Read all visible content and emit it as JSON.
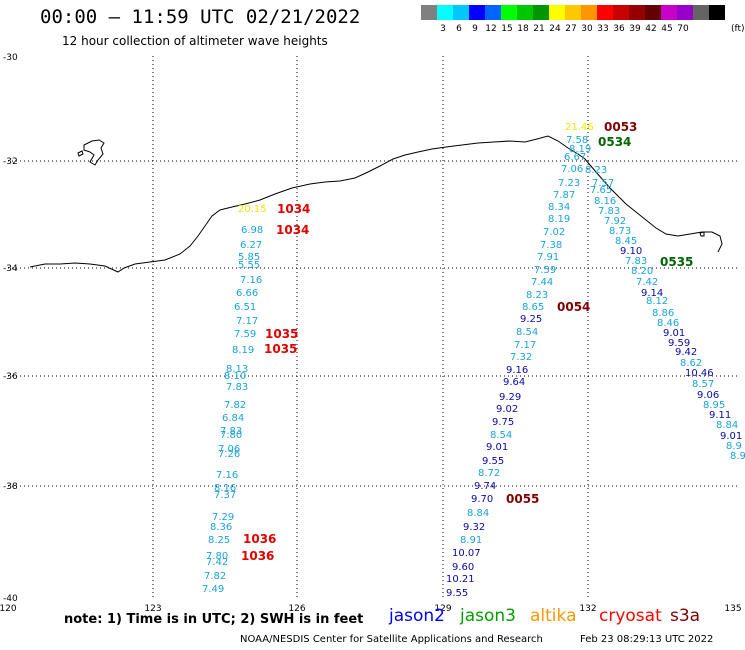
{
  "header": {
    "title": "00:00 – 11:59 UTC 02/21/2022",
    "subtitle": "12 hour collection of altimeter wave heights"
  },
  "colorbar": {
    "colors": [
      "#808080",
      "#00ffff",
      "#00c8ff",
      "#0000ff",
      "#0064ff",
      "#00ff00",
      "#00c800",
      "#009600",
      "#ffff00",
      "#ffc800",
      "#ff9600",
      "#ff0000",
      "#c80000",
      "#960000",
      "#640000",
      "#c800c8",
      "#9600c8",
      "#646464",
      "#000000"
    ],
    "labels": [
      "3",
      "6",
      "9",
      "12",
      "15",
      "18",
      "21",
      "24",
      "27",
      "30",
      "33",
      "36",
      "39",
      "42",
      "45",
      "70"
    ],
    "unit": "(ft)"
  },
  "map": {
    "lat_labels": [
      "-30",
      "-32",
      "-34",
      "-36",
      "-38",
      "-40"
    ],
    "lon_labels": [
      "120",
      "123",
      "126",
      "129",
      "132",
      "135"
    ]
  },
  "tracks": {
    "west_times": [
      {
        "text": "1034",
        "color": "#e00000"
      },
      {
        "text": "1034",
        "color": "#e00000"
      },
      {
        "text": "1035",
        "color": "#e00000"
      },
      {
        "text": "1035",
        "color": "#e00000"
      },
      {
        "text": "1036",
        "color": "#e00000"
      },
      {
        "text": "1036",
        "color": "#e00000"
      }
    ],
    "west_values": [
      "20.15",
      "6.98",
      "6.27",
      "5.85",
      "5.55",
      "7.16",
      "6.66",
      "6.51",
      "7.17",
      "7.59",
      "8.19",
      "8.13",
      "8.10",
      "7.83",
      "7.82",
      "6.84",
      "7.83",
      "7.80",
      "7.06",
      "7.26",
      "7.16",
      "8.16",
      "7.37",
      "7.29",
      "8.36",
      "8.25",
      "7.80",
      "7.42",
      "7.82",
      "7.49"
    ],
    "mid_times": [
      {
        "text": "0053",
        "color": "#800000"
      },
      {
        "text": "0534",
        "color": "#006400"
      },
      {
        "text": "0535",
        "color": "#006400"
      },
      {
        "text": "0054",
        "color": "#800000"
      },
      {
        "text": "0055",
        "color": "#800000"
      }
    ],
    "mid_values": [
      {
        "t": "21.46",
        "c": "#e8e800"
      },
      {
        "t": "7.58",
        "c": "#1aa3d9"
      },
      {
        "t": "8.19",
        "c": "#1aa3d9"
      },
      {
        "t": "6.67",
        "c": "#1aa3d9"
      },
      {
        "t": "7.06",
        "c": "#1aa3d9"
      },
      {
        "t": "7.23",
        "c": "#1aa3d9"
      },
      {
        "t": "7.87",
        "c": "#1aa3d9"
      },
      {
        "t": "8.34",
        "c": "#1aa3d9"
      },
      {
        "t": "8.19",
        "c": "#1aa3d9"
      },
      {
        "t": "7.02",
        "c": "#1aa3d9"
      },
      {
        "t": "7.38",
        "c": "#1aa3d9"
      },
      {
        "t": "7.91",
        "c": "#1aa3d9"
      },
      {
        "t": "7.59",
        "c": "#1aa3d9"
      },
      {
        "t": "7.44",
        "c": "#1aa3d9"
      },
      {
        "t": "8.23",
        "c": "#1aa3d9"
      },
      {
        "t": "8.65",
        "c": "#1aa3d9"
      },
      {
        "t": "9.25",
        "c": "#0a0aa0"
      },
      {
        "t": "8.54",
        "c": "#1aa3d9"
      },
      {
        "t": "7.17",
        "c": "#1aa3d9"
      },
      {
        "t": "7.32",
        "c": "#1aa3d9"
      },
      {
        "t": "9.16",
        "c": "#0a0aa0"
      },
      {
        "t": "9.64",
        "c": "#0a0aa0"
      },
      {
        "t": "9.29",
        "c": "#0a0aa0"
      },
      {
        "t": "9.02",
        "c": "#0a0aa0"
      },
      {
        "t": "9.75",
        "c": "#0a0aa0"
      },
      {
        "t": "8.54",
        "c": "#1aa3d9"
      },
      {
        "t": "9.01",
        "c": "#0a0aa0"
      },
      {
        "t": "9.55",
        "c": "#0a0aa0"
      },
      {
        "t": "8.72",
        "c": "#1aa3d9"
      },
      {
        "t": "9.74",
        "c": "#0a0aa0"
      },
      {
        "t": "9.70",
        "c": "#0a0aa0"
      },
      {
        "t": "8.84",
        "c": "#1aa3d9"
      },
      {
        "t": "9.32",
        "c": "#0a0aa0"
      },
      {
        "t": "8.91",
        "c": "#1aa3d9"
      },
      {
        "t": "10.07",
        "c": "#0a0aa0"
      },
      {
        "t": "9.60",
        "c": "#0a0aa0"
      },
      {
        "t": "10.21",
        "c": "#0a0aa0"
      },
      {
        "t": "9.55",
        "c": "#0a0aa0"
      }
    ],
    "east_values": [
      {
        "t": "8.23",
        "c": "#1aa3d9"
      },
      {
        "t": "7.57",
        "c": "#1aa3d9"
      },
      {
        "t": "7.65",
        "c": "#1aa3d9"
      },
      {
        "t": "8.16",
        "c": "#1aa3d9"
      },
      {
        "t": "7.83",
        "c": "#1aa3d9"
      },
      {
        "t": "7.92",
        "c": "#1aa3d9"
      },
      {
        "t": "8.73",
        "c": "#1aa3d9"
      },
      {
        "t": "8.45",
        "c": "#1aa3d9"
      },
      {
        "t": "9.10",
        "c": "#0a0aa0"
      },
      {
        "t": "7.83",
        "c": "#1aa3d9"
      },
      {
        "t": "8.20",
        "c": "#1aa3d9"
      },
      {
        "t": "7.42",
        "c": "#1aa3d9"
      },
      {
        "t": "9.14",
        "c": "#0a0aa0"
      },
      {
        "t": "8.12",
        "c": "#1aa3d9"
      },
      {
        "t": "8.86",
        "c": "#1aa3d9"
      },
      {
        "t": "8.46",
        "c": "#1aa3d9"
      },
      {
        "t": "9.01",
        "c": "#0a0aa0"
      },
      {
        "t": "9.59",
        "c": "#0a0aa0"
      },
      {
        "t": "9.42",
        "c": "#0a0aa0"
      },
      {
        "t": "8.62",
        "c": "#1aa3d9"
      },
      {
        "t": "10.46",
        "c": "#0a0aa0"
      },
      {
        "t": "8.57",
        "c": "#1aa3d9"
      },
      {
        "t": "9.06",
        "c": "#0a0aa0"
      },
      {
        "t": "8.95",
        "c": "#1aa3d9"
      },
      {
        "t": "9.11",
        "c": "#0a0aa0"
      },
      {
        "t": "8.84",
        "c": "#1aa3d9"
      },
      {
        "t": "9.01",
        "c": "#0a0aa0"
      },
      {
        "t": "8.9",
        "c": "#1aa3d9"
      },
      {
        "t": "8.9",
        "c": "#1aa3d9"
      }
    ]
  },
  "footer": {
    "note": "note:  1) Time is in UTC; 2) SWH is in feet",
    "satellites": [
      {
        "name": "jason2",
        "color": "#0000ff"
      },
      {
        "name": "jason3",
        "color": "#00a000"
      },
      {
        "name": "altika",
        "color": "#ff9600"
      },
      {
        "name": "cryosat",
        "color": "#ff0000"
      },
      {
        "name": "s3a",
        "color": "#800000"
      }
    ],
    "credit": "NOAA/NESDIS Center for Satellite Applications and Research",
    "timestamp": "Feb 23 08:29:13 UTC 2022"
  }
}
